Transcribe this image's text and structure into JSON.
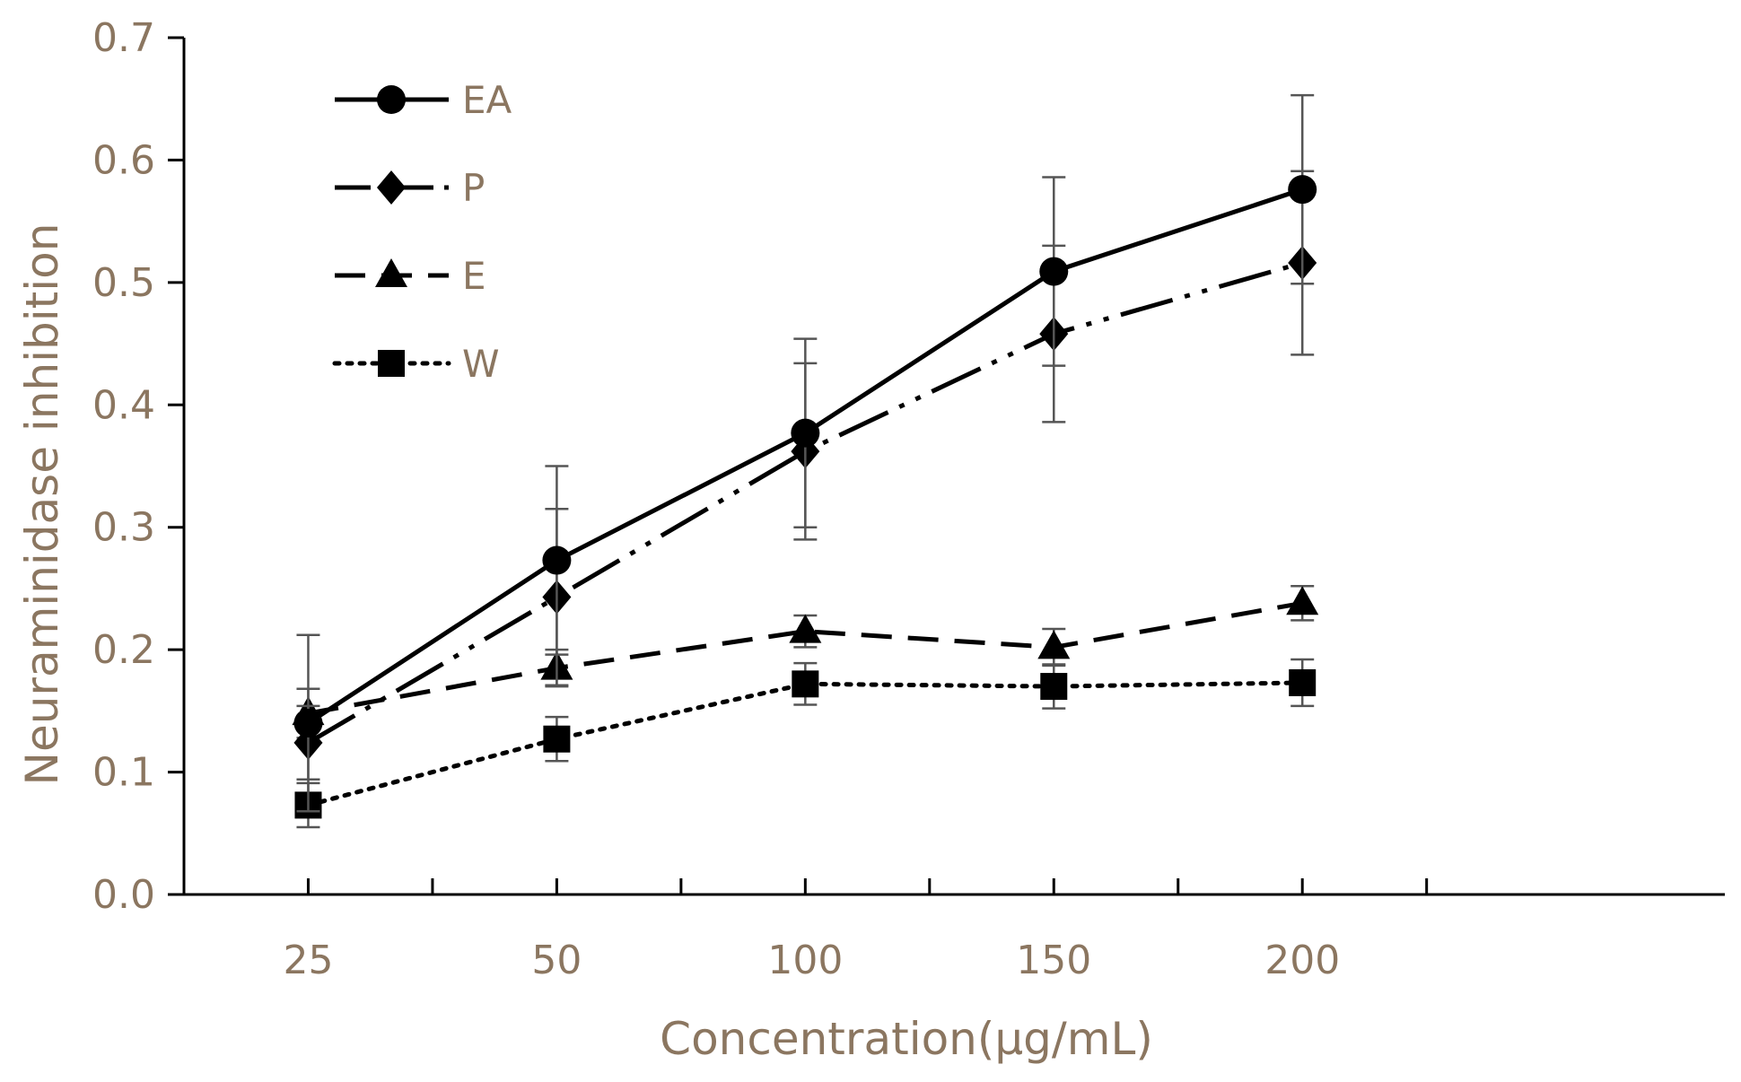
{
  "chart_data": {
    "type": "line",
    "title": "",
    "xlabel": "Concentration(μg/mL)",
    "ylabel": "Neuraminidase inhibition",
    "categories": [
      "25",
      "50",
      "100",
      "150",
      "200"
    ],
    "yticks": [
      "0.0",
      "0.1",
      "0.2",
      "0.3",
      "0.4",
      "0.5",
      "0.6",
      "0.7"
    ],
    "ylim": [
      0,
      0.7
    ],
    "grid": false,
    "legend_position": "top-left",
    "colors": {
      "series": "#000000",
      "error_bar": "#555555",
      "axis": "#000000",
      "text": "#8b7660"
    },
    "series": [
      {
        "name": "EA",
        "marker": "circle",
        "line": "solid",
        "values": [
          0.14,
          0.273,
          0.377,
          0.509,
          0.576
        ],
        "errors": [
          0.072,
          0.077,
          0.077,
          0.077,
          0.077
        ]
      },
      {
        "name": "P",
        "marker": "diamond",
        "line": "dash-dot-dot",
        "values": [
          0.124,
          0.243,
          0.362,
          0.458,
          0.516
        ],
        "errors": [
          0.03,
          0.072,
          0.072,
          0.072,
          0.075
        ]
      },
      {
        "name": "E",
        "marker": "triangle",
        "line": "dashed",
        "values": [
          0.148,
          0.185,
          0.215,
          0.202,
          0.238
        ],
        "errors": [
          0.02,
          0.015,
          0.013,
          0.015,
          0.014
        ]
      },
      {
        "name": "W",
        "marker": "square",
        "line": "dotted",
        "values": [
          0.073,
          0.127,
          0.172,
          0.17,
          0.173
        ],
        "errors": [
          0.018,
          0.018,
          0.017,
          0.018,
          0.019
        ]
      }
    ]
  }
}
